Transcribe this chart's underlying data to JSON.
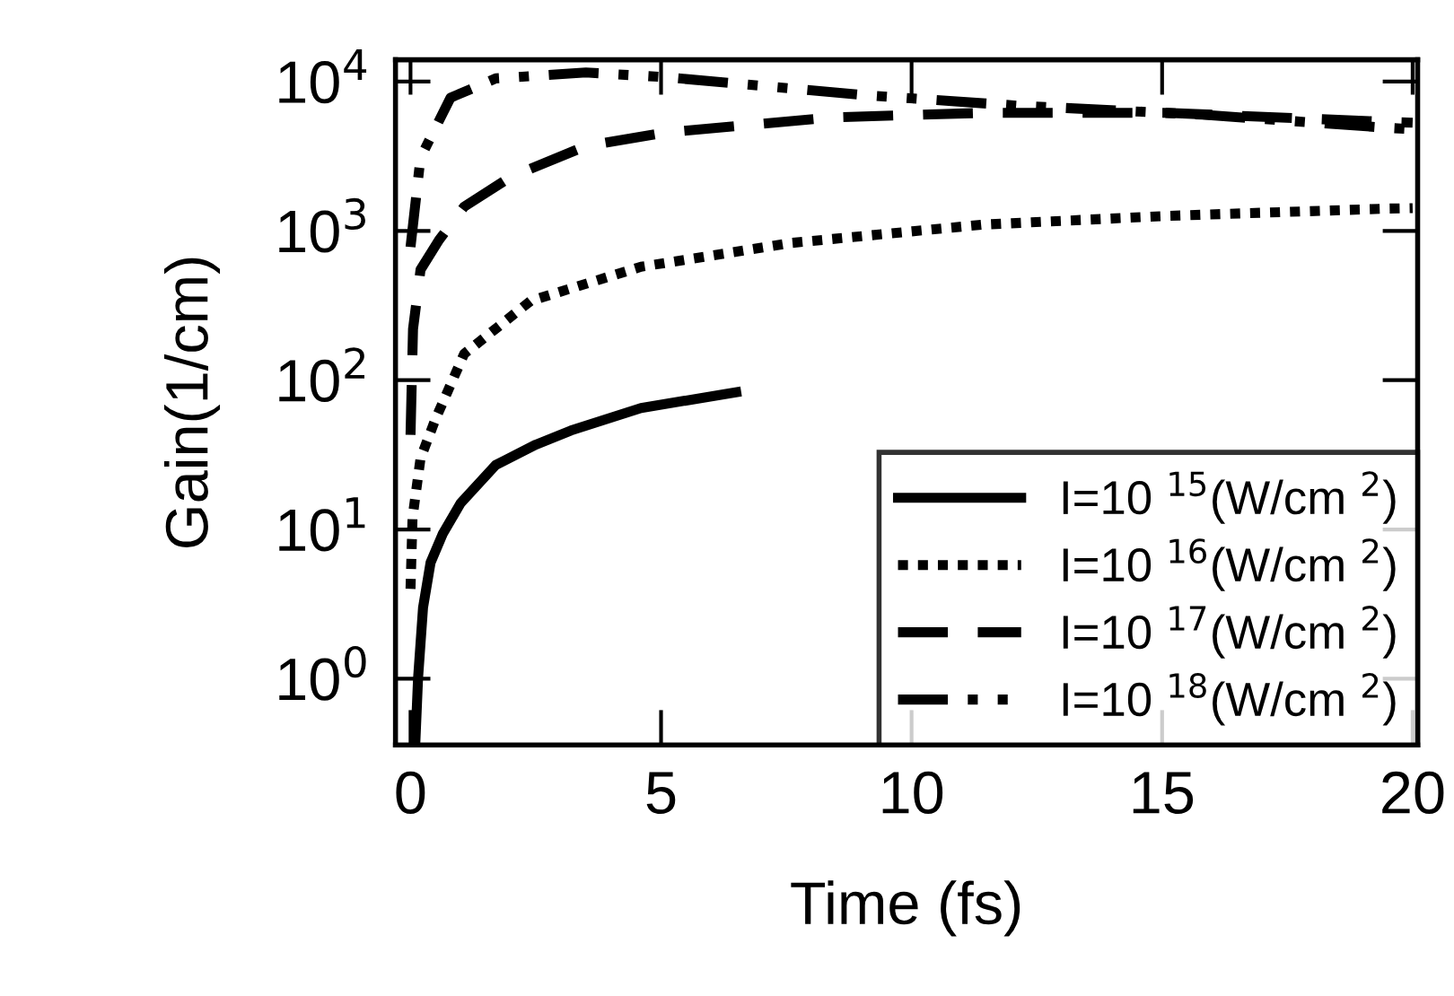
{
  "chart_data": {
    "type": "line",
    "xlabel": "Time (fs)",
    "ylabel": "Gain(1/cm)",
    "log": "y",
    "xlim": [
      -0.3,
      20.1
    ],
    "xticks": [
      0,
      5,
      10,
      15,
      20
    ],
    "ylim": [
      0.36,
      14000
    ],
    "yticks": [
      {
        "value": 1,
        "label": "10$^{0}$"
      },
      {
        "value": 10,
        "label": "10$^{1}$"
      },
      {
        "value": 100,
        "label": "10$^{2}$"
      },
      {
        "value": 1000,
        "label": "10$^{3}$"
      },
      {
        "value": 10000,
        "label": "10$^{4}$"
      }
    ],
    "grid": false,
    "legend": "bottom right",
    "series": [
      {
        "name": "I=10 $^{15}$(W/cm $^{2}$)",
        "color": "#000000",
        "line_style": "solid",
        "x": [
          0.1,
          0.15,
          0.25,
          0.4,
          0.64,
          1,
          1.7,
          2.5,
          3.2,
          4.6,
          6.3,
          6.5
        ],
        "values": [
          0.4,
          1,
          3,
          6,
          9.3,
          15,
          27,
          37,
          46,
          65,
          81,
          83
        ]
      },
      {
        "name": "I=10 $^{16}$(W/cm $^{2}$)",
        "color": "#000000",
        "line_style": "dotted",
        "x": [
          0,
          0.04,
          0.2,
          0.5,
          1.07,
          2.4,
          4.6,
          7.6,
          11.4,
          15.1,
          19.5,
          20
        ],
        "values": [
          4,
          12,
          30,
          55,
          150,
          340,
          575,
          830,
          1100,
          1260,
          1410,
          1420
        ]
      },
      {
        "name": "I=10 $^{17}$(W/cm $^{2}$)",
        "color": "#000000",
        "line_style": "dashed",
        "x": [
          0,
          0.05,
          0.2,
          0.57,
          1.07,
          2,
          3.5,
          5.1,
          8.4,
          11.4,
          15.1,
          19.5,
          20
        ],
        "values": [
          43,
          220,
          550,
          870,
          1450,
          2300,
          3700,
          4570,
          5750,
          6170,
          6170,
          5370,
          5300
        ]
      },
      {
        "name": "I=10 $^{18}$(W/cm $^{2}$)",
        "color": "#000000",
        "line_style": "dashdot",
        "x": [
          0,
          0.2,
          0.8,
          1.7,
          3.5,
          5.1,
          9.1,
          12.1,
          15.8,
          19.5,
          20
        ],
        "values": [
          780,
          3100,
          7800,
          10500,
          11500,
          10700,
          8100,
          6900,
          6000,
          4900,
          4800
        ]
      }
    ]
  }
}
